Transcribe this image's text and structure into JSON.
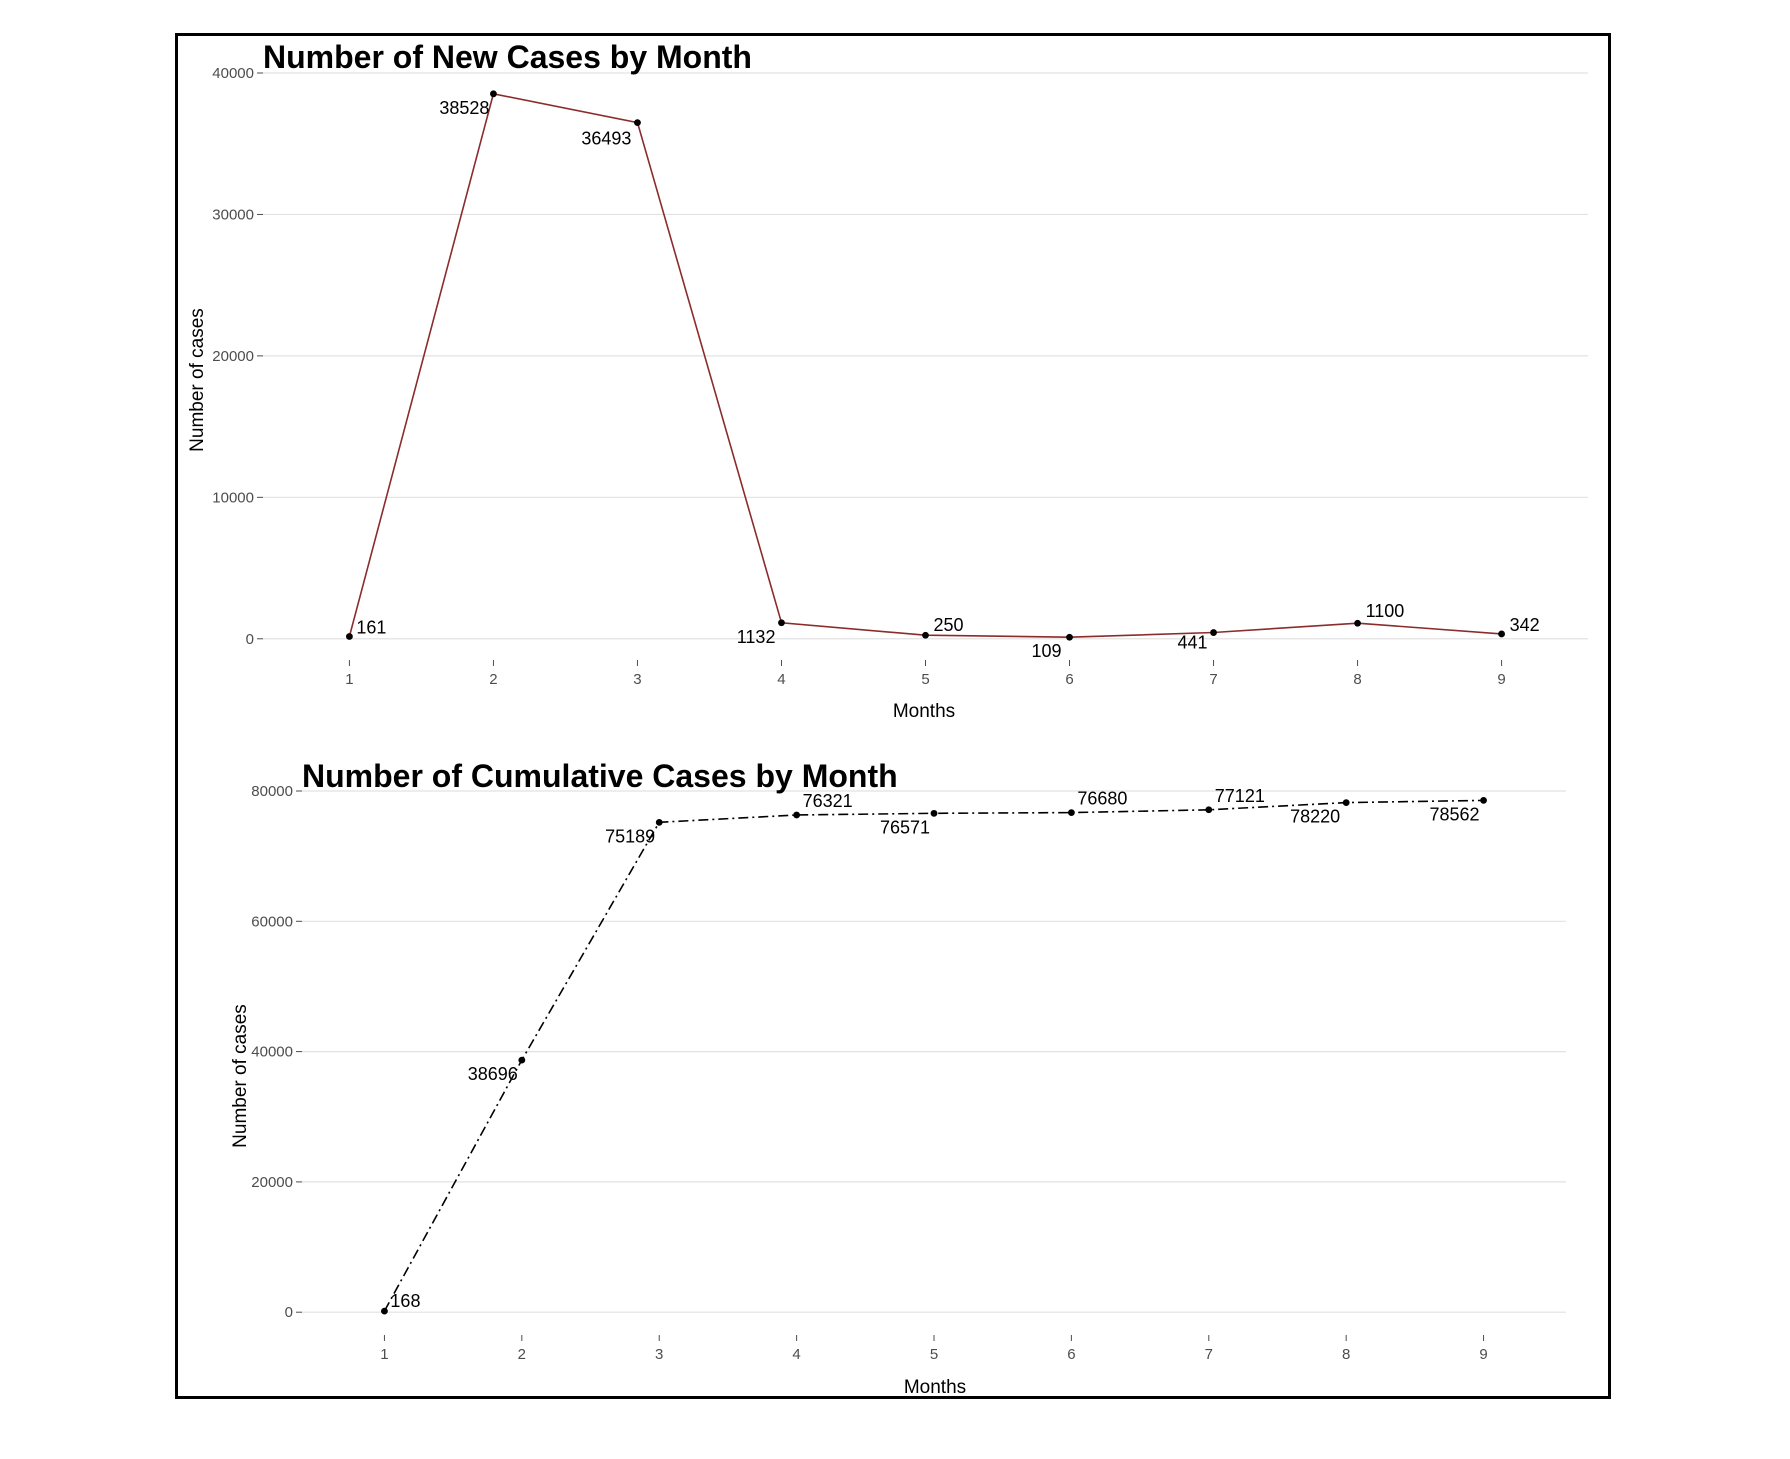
{
  "chart_data": [
    {
      "type": "line",
      "title": "Number of New Cases by Month",
      "xlabel": "Months",
      "ylabel": "Number of cases",
      "x": [
        1,
        2,
        3,
        4,
        5,
        6,
        7,
        8,
        9
      ],
      "xlim": [
        0.4,
        9.6
      ],
      "ylim": [
        -1500,
        40000
      ],
      "yticks": [
        0,
        10000,
        20000,
        30000,
        40000
      ],
      "grid": true,
      "line_style": "solid",
      "line_color": "#8b2c2c",
      "point_color": "#000000",
      "series": [
        {
          "values": [
            161,
            38528,
            36493,
            1132,
            250,
            109,
            441,
            1100,
            342
          ],
          "labels": [
            "161",
            "38528",
            "36493",
            "1132",
            "250",
            "109",
            "441",
            "1100",
            "342"
          ]
        }
      ]
    },
    {
      "type": "line",
      "title": "Number of Cumulative Cases by Month",
      "xlabel": "Months",
      "ylabel": "Number of cases",
      "x": [
        1,
        2,
        3,
        4,
        5,
        6,
        7,
        8,
        9
      ],
      "xlim": [
        0.4,
        9.6
      ],
      "ylim": [
        -3500,
        80000
      ],
      "yticks": [
        0,
        20000,
        40000,
        60000,
        80000
      ],
      "grid": true,
      "line_style": "dashdot",
      "line_color": "#000000",
      "point_color": "#000000",
      "series": [
        {
          "values": [
            168,
            38696,
            75189,
            76321,
            76571,
            76680,
            77121,
            78220,
            78562
          ],
          "labels": [
            "168",
            "38696",
            "75189",
            "76321",
            "76571",
            "76680",
            "77121",
            "78220",
            "78562"
          ]
        }
      ]
    }
  ]
}
